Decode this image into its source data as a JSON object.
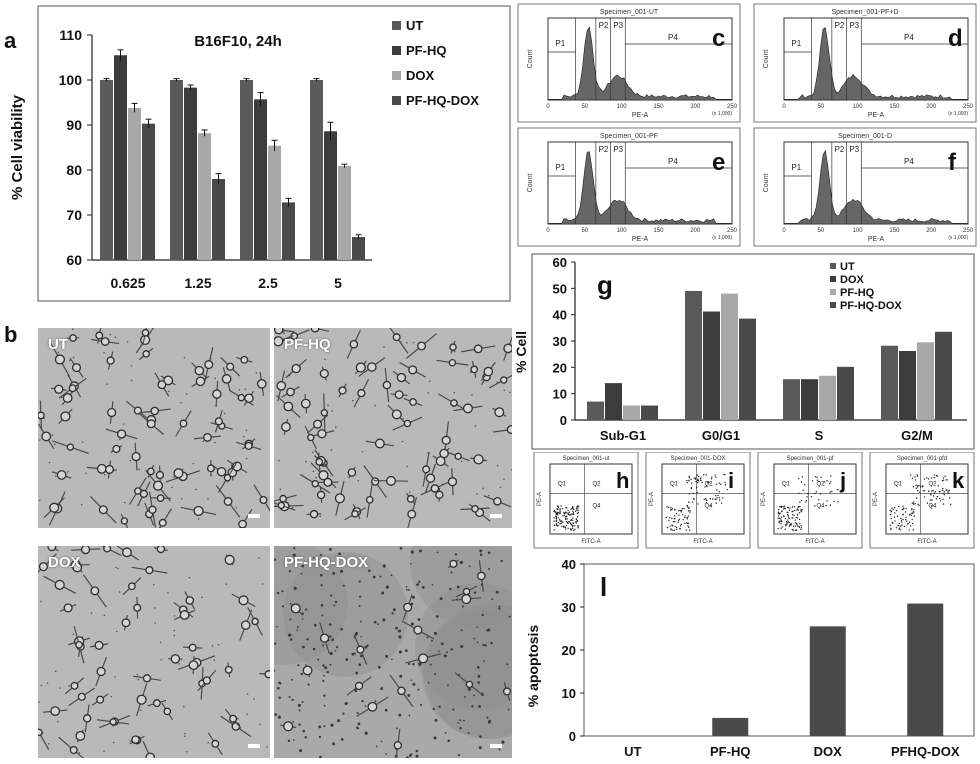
{
  "panel_letters": {
    "a": "a",
    "b": "b"
  },
  "colors": {
    "UT": "#5a5a5a",
    "PF-HQ": "#3c3c3c",
    "DOX": "#a8a8a8",
    "PF-HQ-DOX": "#4a4a4a"
  },
  "chart_data": [
    {
      "id": "a",
      "type": "bar",
      "title": "B16F10, 24h",
      "ylabel": "% Cell viability",
      "xlabel": "",
      "ylim": [
        60,
        110
      ],
      "yticks": [
        60,
        70,
        80,
        90,
        100,
        110
      ],
      "categories": [
        "0.625",
        "1.25",
        "2.5",
        "5"
      ],
      "legend_position": "top-right",
      "series": [
        {
          "name": "UT",
          "values": [
            100,
            100,
            100,
            100
          ],
          "errors": [
            0.3,
            0.3,
            0.3,
            0.3
          ]
        },
        {
          "name": "PF-HQ",
          "values": [
            105.5,
            98.3,
            95.7,
            88.6
          ],
          "errors": [
            1.2,
            0.6,
            1.5,
            2.0
          ]
        },
        {
          "name": "DOX",
          "values": [
            93.8,
            88.2,
            85.4,
            80.9
          ],
          "errors": [
            1.0,
            0.7,
            1.2,
            0.4
          ]
        },
        {
          "name": "PF-HQ-DOX",
          "values": [
            90.3,
            78.0,
            72.8,
            65.1
          ],
          "errors": [
            1.0,
            1.2,
            0.9,
            0.5
          ]
        }
      ]
    },
    {
      "id": "g",
      "type": "bar",
      "panel_label": "g",
      "ylabel": "% Cell",
      "xlabel": "",
      "ylim": [
        0,
        60
      ],
      "yticks": [
        0,
        10,
        20,
        30,
        40,
        50,
        60
      ],
      "categories": [
        "Sub-G1",
        "G0/G1",
        "S",
        "G2/M"
      ],
      "legend_position": "top-right",
      "series": [
        {
          "name": "UT",
          "values": [
            7,
            49,
            15.5,
            28.2
          ]
        },
        {
          "name": "DOX",
          "values": [
            14,
            41.2,
            15.5,
            26.2
          ]
        },
        {
          "name": "PF-HQ",
          "values": [
            5.5,
            48,
            16.8,
            29.5
          ]
        },
        {
          "name": "PF-HQ-DOX",
          "values": [
            5.5,
            38.5,
            20.2,
            33.5
          ]
        }
      ]
    },
    {
      "id": "l",
      "type": "bar",
      "panel_label": "l",
      "ylabel": "% apoptosis",
      "xlabel": "",
      "ylim": [
        0,
        40
      ],
      "yticks": [
        0,
        10,
        20,
        30,
        40
      ],
      "categories": [
        "UT",
        "PF-HQ",
        "DOX",
        "PFHQ-DOX"
      ],
      "values": [
        0,
        4.2,
        25.5,
        30.8
      ]
    }
  ],
  "flow_histograms": [
    {
      "label": "c",
      "title": "Specimen_001-UT",
      "xlabel": "PE-A",
      "ylabel": "Count",
      "gates": [
        "P1",
        "P2",
        "P3",
        "P4"
      ],
      "ticks": [
        "0",
        "50",
        "100",
        "150",
        "200",
        "250"
      ],
      "scale": "(x 1,000)"
    },
    {
      "label": "d",
      "title": "Specimen_001-PF+D",
      "xlabel": "PE-A",
      "ylabel": "Count",
      "gates": [
        "P1",
        "P2",
        "P3",
        "P4"
      ],
      "ticks": [
        "0",
        "50",
        "100",
        "150",
        "200",
        "250"
      ],
      "scale": "(x 1,000)"
    },
    {
      "label": "e",
      "title": "Specimen_001-PF",
      "xlabel": "PE-A",
      "ylabel": "Count",
      "gates": [
        "P1",
        "P2",
        "P3",
        "P4"
      ],
      "ticks": [
        "0",
        "50",
        "100",
        "150",
        "200",
        "250"
      ],
      "scale": "(x 1,000)"
    },
    {
      "label": "f",
      "title": "Specimen_001-D",
      "xlabel": "PE-A",
      "ylabel": "Count",
      "gates": [
        "P1",
        "P2",
        "P3",
        "P4"
      ],
      "ticks": [
        "0",
        "50",
        "100",
        "150",
        "200",
        "250"
      ],
      "scale": "(x 1,000)"
    }
  ],
  "scatter_panels": [
    {
      "label": "h",
      "title": "Specimen_001-ut",
      "xlabel": "FITC-A",
      "ylabel": "PE-A",
      "quadrants": [
        "Q1",
        "Q2",
        "Q4"
      ]
    },
    {
      "label": "i",
      "title": "Specimen_001-DOX",
      "xlabel": "FITC-A",
      "ylabel": "PE-A",
      "quadrants": [
        "Q1",
        "Q2",
        "Q4"
      ]
    },
    {
      "label": "j",
      "title": "Specimen_001-pf",
      "xlabel": "FITC-A",
      "ylabel": "PE-A",
      "quadrants": [
        "Q1",
        "Q2",
        "Q4"
      ]
    },
    {
      "label": "k",
      "title": "Specimen_001-pfd",
      "xlabel": "FITC-A",
      "ylabel": "PE-A",
      "quadrants": [
        "Q1",
        "Q2",
        "Q4"
      ]
    }
  ],
  "micrographs": [
    {
      "label": "UT"
    },
    {
      "label": "PF-HQ"
    },
    {
      "label": "DOX"
    },
    {
      "label": "PF-HQ-DOX"
    }
  ]
}
